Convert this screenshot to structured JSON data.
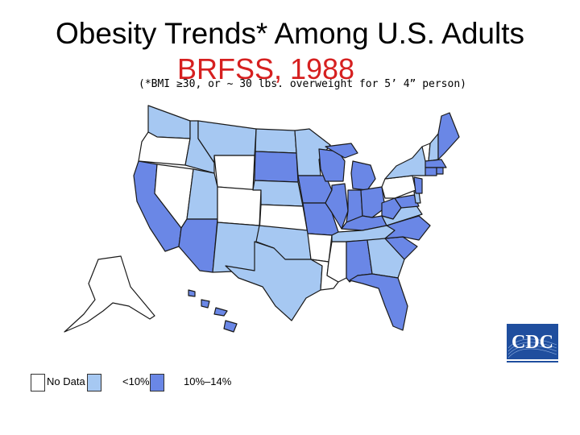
{
  "title": "Obesity Trends* Among U.S. Adults",
  "subtitle": "BRFSS, 1988",
  "note": "(*BMI ≥30, or ~ 30 lbs. overweight for 5’ 4” person)",
  "colors": {
    "subtitle": "#d62020",
    "no_data": "#ffffff",
    "lt10": "#a6c8f2",
    "c10_14": "#6a87e6",
    "border": "#1a1a1a",
    "cdc_blue": "#1f4e9e"
  },
  "legend": [
    {
      "label": "No Data",
      "category": "no_data"
    },
    {
      "label": "<10%",
      "category": "lt10"
    },
    {
      "label": "10%–14%",
      "category": "c10_14"
    }
  ],
  "states": {
    "WA": "lt10",
    "OR": "no_data",
    "CA": "c10_14",
    "NV": "no_data",
    "ID": "lt10",
    "MT": "lt10",
    "WY": "no_data",
    "UT": "lt10",
    "AZ": "c10_14",
    "CO": "no_data",
    "NM": "lt10",
    "ND": "lt10",
    "SD": "c10_14",
    "NE": "lt10",
    "KS": "no_data",
    "OK": "lt10",
    "TX": "lt10",
    "MN": "lt10",
    "IA": "c10_14",
    "MO": "c10_14",
    "AR": "no_data",
    "LA": "no_data",
    "WI": "c10_14",
    "IL": "c10_14",
    "MS": "no_data",
    "MI": "c10_14",
    "IN": "c10_14",
    "KY": "c10_14",
    "TN": "lt10",
    "AL": "c10_14",
    "OH": "c10_14",
    "WV": "c10_14",
    "GA": "lt10",
    "FL": "c10_14",
    "SC": "c10_14",
    "NC": "c10_14",
    "VA": "lt10",
    "PA": "no_data",
    "NY": "lt10",
    "ME": "c10_14",
    "NH": "lt10",
    "VT": "no_data",
    "MA": "c10_14",
    "CT": "c10_14",
    "RI": "c10_14",
    "NJ": "c10_14",
    "DE": "lt10",
    "MD": "c10_14",
    "AK": "no_data",
    "HI": "c10_14"
  },
  "logo_text": "CDC"
}
